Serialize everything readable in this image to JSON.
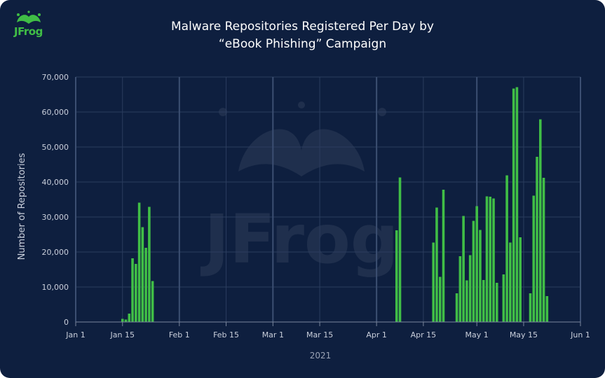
{
  "logo": {
    "text": "JFrog",
    "icon": "frog-splash-icon",
    "color": "#40be46"
  },
  "title_line1": "Malware Repositories Registered Per Day by",
  "title_line2": "“eBook Phishing” Campaign",
  "colors": {
    "background": "#0e1f3f",
    "bar": "#40be46",
    "grid": "#2b3d5e",
    "monthline": "#3c4f72"
  },
  "chart_data": {
    "type": "bar",
    "title": "Malware Repositories Registered Per Day by “eBook Phishing” Campaign",
    "xlabel": "2021",
    "ylabel": "Number of Repositories",
    "xlim": [
      "2021-01-01",
      "2021-06-01"
    ],
    "ylim": [
      0,
      70000
    ],
    "y_ticks": [
      "0",
      "10,000",
      "20,000",
      "30,000",
      "40,000",
      "50,000",
      "60,000",
      "70,000"
    ],
    "x_ticks": [
      {
        "date": "2021-01-01",
        "label": "Jan 1"
      },
      {
        "date": "2021-01-15",
        "label": "Jan 15"
      },
      {
        "date": "2021-02-01",
        "label": "Feb 1"
      },
      {
        "date": "2021-02-15",
        "label": "Feb 15"
      },
      {
        "date": "2021-03-01",
        "label": "Mar 1"
      },
      {
        "date": "2021-03-15",
        "label": "Mar 15"
      },
      {
        "date": "2021-04-01",
        "label": "Apr 1"
      },
      {
        "date": "2021-04-15",
        "label": "Apr 15"
      },
      {
        "date": "2021-05-01",
        "label": "May 1"
      },
      {
        "date": "2021-05-15",
        "label": "May 15"
      },
      {
        "date": "2021-06-01",
        "label": "Jun 1"
      }
    ],
    "grid": true,
    "series": [
      {
        "dates": [
          "2021-01-15",
          "2021-01-16",
          "2021-01-17",
          "2021-01-18",
          "2021-01-19",
          "2021-01-20",
          "2021-01-21",
          "2021-01-22",
          "2021-01-23",
          "2021-01-24",
          "2021-04-07",
          "2021-04-08",
          "2021-04-18",
          "2021-04-19",
          "2021-04-20",
          "2021-04-21",
          "2021-04-25",
          "2021-04-26",
          "2021-04-27",
          "2021-04-28",
          "2021-04-29",
          "2021-04-30",
          "2021-05-01",
          "2021-05-02",
          "2021-05-03",
          "2021-05-04",
          "2021-05-05",
          "2021-05-06",
          "2021-05-07",
          "2021-05-09",
          "2021-05-10",
          "2021-05-11",
          "2021-05-12",
          "2021-05-13",
          "2021-05-14",
          "2021-05-17",
          "2021-05-18",
          "2021-05-19",
          "2021-05-20",
          "2021-05-21",
          "2021-05-22"
        ],
        "values": [
          900,
          700,
          2400,
          18200,
          16600,
          34100,
          27100,
          21200,
          32900,
          11700,
          26200,
          41300,
          22700,
          32700,
          12900,
          37800,
          8200,
          18800,
          30300,
          11900,
          19100,
          28900,
          33100,
          26300,
          12000,
          35900,
          35800,
          35300,
          11200,
          13600,
          41900,
          22700,
          66700,
          67100,
          24200,
          8200,
          36100,
          47200,
          57900,
          41200,
          7400
        ]
      }
    ]
  }
}
